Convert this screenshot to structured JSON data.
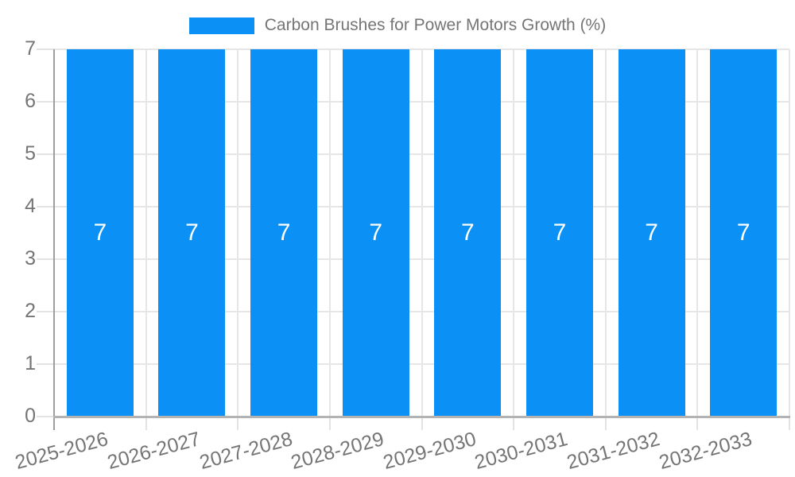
{
  "legend": {
    "label": "Carbon Brushes for Power Motors Growth (%)"
  },
  "chart_data": {
    "type": "bar",
    "title": "Carbon Brushes for Power Motors Growth (%)",
    "categories": [
      "2025-2026",
      "2026-2027",
      "2027-2028",
      "2028-2029",
      "2029-2030",
      "2030-2031",
      "2031-2032",
      "2032-2033"
    ],
    "series": [
      {
        "name": "Carbon Brushes for Power Motors Growth (%)",
        "values": [
          7,
          7,
          7,
          7,
          7,
          7,
          7,
          7
        ]
      }
    ],
    "value_labels": [
      "7",
      "7",
      "7",
      "7",
      "7",
      "7",
      "7",
      "7"
    ],
    "xlabel": "",
    "ylabel": "",
    "ylim": [
      0,
      7
    ],
    "yticks": [
      0,
      1,
      2,
      3,
      4,
      5,
      6,
      7
    ],
    "grid": true,
    "legend_position": "top-center",
    "colors": {
      "bar": "#0b90f5",
      "grid": "#e6e6e6",
      "tick": "#e3e3e3",
      "y_axis": "#9e9e9e",
      "x_axis": "#b3b3b3",
      "label": "#757575",
      "value_label": "#ffffff",
      "background": "#ffffff"
    }
  }
}
